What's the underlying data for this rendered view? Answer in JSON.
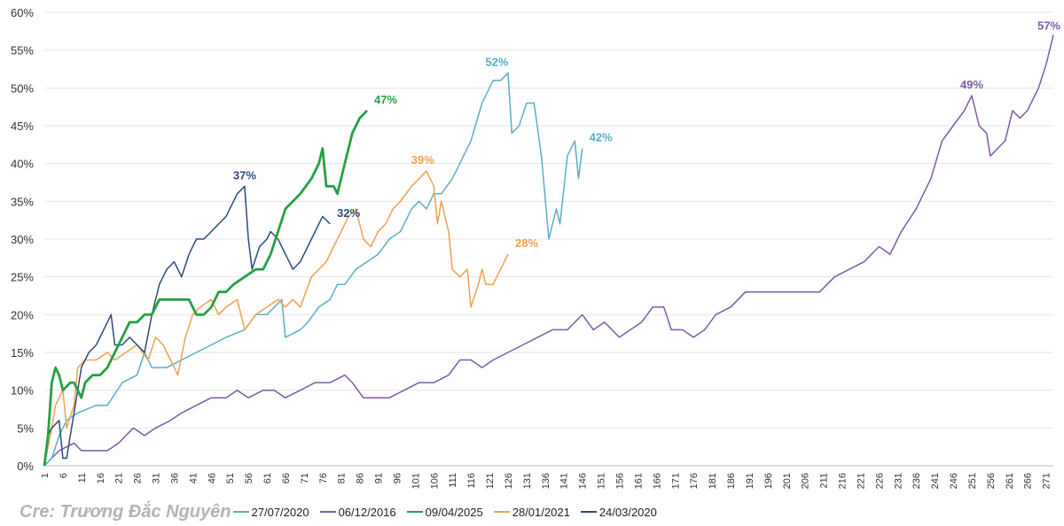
{
  "chart_data": {
    "type": "line",
    "title": "",
    "xlabel": "",
    "ylabel": "",
    "xlim": [
      1,
      273
    ],
    "ylim": [
      0,
      60
    ],
    "y_ticks": [
      "0%",
      "5%",
      "10%",
      "15%",
      "20%",
      "25%",
      "30%",
      "35%",
      "40%",
      "45%",
      "50%",
      "55%",
      "60%"
    ],
    "x_ticks": [
      1,
      6,
      11,
      16,
      21,
      26,
      31,
      36,
      41,
      46,
      51,
      56,
      61,
      66,
      71,
      76,
      81,
      86,
      91,
      96,
      101,
      106,
      111,
      116,
      121,
      126,
      131,
      136,
      141,
      146,
      151,
      156,
      161,
      166,
      171,
      176,
      181,
      186,
      191,
      196,
      201,
      206,
      211,
      216,
      221,
      226,
      231,
      236,
      241,
      246,
      251,
      256,
      261,
      266,
      271
    ],
    "grid": "horizontal",
    "legend_position": "bottom",
    "series": [
      {
        "name": "27/07/2020",
        "color": "#5aaec6",
        "width": 1.5,
        "points": [
          [
            1,
            0
          ],
          [
            3,
            1
          ],
          [
            5,
            4
          ],
          [
            7,
            6
          ],
          [
            10,
            7
          ],
          [
            15,
            8
          ],
          [
            18,
            8
          ],
          [
            22,
            11
          ],
          [
            26,
            12
          ],
          [
            28,
            15
          ],
          [
            30,
            13
          ],
          [
            34,
            13
          ],
          [
            38,
            14
          ],
          [
            42,
            15
          ],
          [
            46,
            16
          ],
          [
            50,
            17
          ],
          [
            55,
            18
          ],
          [
            58,
            20
          ],
          [
            61,
            20
          ],
          [
            65,
            22
          ],
          [
            66,
            17
          ],
          [
            70,
            18
          ],
          [
            72,
            19
          ],
          [
            75,
            21
          ],
          [
            78,
            22
          ],
          [
            80,
            24
          ],
          [
            82,
            24
          ],
          [
            85,
            26
          ],
          [
            88,
            27
          ],
          [
            91,
            28
          ],
          [
            94,
            30
          ],
          [
            97,
            31
          ],
          [
            100,
            34
          ],
          [
            102,
            35
          ],
          [
            104,
            34
          ],
          [
            106,
            36
          ],
          [
            108,
            36
          ],
          [
            111,
            38
          ],
          [
            113,
            40
          ],
          [
            116,
            43
          ],
          [
            119,
            48
          ],
          [
            122,
            51
          ],
          [
            124,
            51
          ],
          [
            126,
            52
          ],
          [
            127,
            44
          ],
          [
            129,
            45
          ],
          [
            131,
            48
          ],
          [
            133,
            48
          ],
          [
            135,
            41
          ],
          [
            137,
            30
          ],
          [
            139,
            34
          ],
          [
            140,
            32
          ],
          [
            142,
            41
          ],
          [
            144,
            43
          ],
          [
            145,
            38
          ],
          [
            146,
            42
          ]
        ],
        "end_label": "42%",
        "peak_label": {
          "x": 123,
          "y": 52,
          "text": "52%"
        }
      },
      {
        "name": "06/12/2016",
        "color": "#7d5aa6",
        "width": 1.5,
        "points": [
          [
            1,
            0
          ],
          [
            5,
            2
          ],
          [
            9,
            3
          ],
          [
            11,
            2
          ],
          [
            15,
            2
          ],
          [
            18,
            2
          ],
          [
            21,
            3
          ],
          [
            25,
            5
          ],
          [
            28,
            4
          ],
          [
            31,
            5
          ],
          [
            35,
            6
          ],
          [
            38,
            7
          ],
          [
            42,
            8
          ],
          [
            46,
            9
          ],
          [
            50,
            9
          ],
          [
            53,
            10
          ],
          [
            56,
            9
          ],
          [
            60,
            10
          ],
          [
            63,
            10
          ],
          [
            66,
            9
          ],
          [
            70,
            10
          ],
          [
            74,
            11
          ],
          [
            78,
            11
          ],
          [
            82,
            12
          ],
          [
            84,
            11
          ],
          [
            87,
            9
          ],
          [
            90,
            9
          ],
          [
            94,
            9
          ],
          [
            98,
            10
          ],
          [
            102,
            11
          ],
          [
            106,
            11
          ],
          [
            110,
            12
          ],
          [
            113,
            14
          ],
          [
            116,
            14
          ],
          [
            119,
            13
          ],
          [
            122,
            14
          ],
          [
            126,
            15
          ],
          [
            130,
            16
          ],
          [
            134,
            17
          ],
          [
            138,
            18
          ],
          [
            142,
            18
          ],
          [
            146,
            20
          ],
          [
            149,
            18
          ],
          [
            152,
            19
          ],
          [
            156,
            17
          ],
          [
            159,
            18
          ],
          [
            162,
            19
          ],
          [
            165,
            21
          ],
          [
            168,
            21
          ],
          [
            170,
            18
          ],
          [
            173,
            18
          ],
          [
            176,
            17
          ],
          [
            179,
            18
          ],
          [
            182,
            20
          ],
          [
            186,
            21
          ],
          [
            190,
            23
          ],
          [
            194,
            23
          ],
          [
            198,
            23
          ],
          [
            202,
            23
          ],
          [
            206,
            23
          ],
          [
            210,
            23
          ],
          [
            214,
            25
          ],
          [
            218,
            26
          ],
          [
            222,
            27
          ],
          [
            226,
            29
          ],
          [
            229,
            28
          ],
          [
            232,
            31
          ],
          [
            236,
            34
          ],
          [
            240,
            38
          ],
          [
            243,
            43
          ],
          [
            246,
            45
          ],
          [
            249,
            47
          ],
          [
            251,
            49
          ],
          [
            253,
            45
          ],
          [
            255,
            44
          ],
          [
            256,
            41
          ],
          [
            258,
            42
          ],
          [
            260,
            43
          ],
          [
            262,
            47
          ],
          [
            264,
            46
          ],
          [
            266,
            47
          ],
          [
            269,
            50
          ],
          [
            271,
            53
          ],
          [
            273,
            57
          ]
        ],
        "end_label": "57%",
        "peak_label": {
          "x": 251,
          "y": 49,
          "text": "49%"
        }
      },
      {
        "name": "09/04/2025",
        "color": "#24a142",
        "width": 2.8,
        "points": [
          [
            1,
            0
          ],
          [
            2,
            4
          ],
          [
            3,
            11
          ],
          [
            4,
            13
          ],
          [
            5,
            12
          ],
          [
            6,
            10
          ],
          [
            8,
            11
          ],
          [
            9,
            11
          ],
          [
            10,
            10
          ],
          [
            11,
            9
          ],
          [
            12,
            11
          ],
          [
            14,
            12
          ],
          [
            16,
            12
          ],
          [
            18,
            13
          ],
          [
            20,
            15
          ],
          [
            22,
            17
          ],
          [
            24,
            19
          ],
          [
            26,
            19
          ],
          [
            28,
            20
          ],
          [
            30,
            20
          ],
          [
            32,
            22
          ],
          [
            35,
            22
          ],
          [
            37,
            22
          ],
          [
            40,
            22
          ],
          [
            42,
            20
          ],
          [
            44,
            20
          ],
          [
            46,
            21
          ],
          [
            48,
            23
          ],
          [
            50,
            23
          ],
          [
            52,
            24
          ],
          [
            55,
            25
          ],
          [
            58,
            26
          ],
          [
            60,
            26
          ],
          [
            62,
            28
          ],
          [
            64,
            31
          ],
          [
            66,
            34
          ],
          [
            68,
            35
          ],
          [
            70,
            36
          ],
          [
            73,
            38
          ],
          [
            75,
            40
          ],
          [
            76,
            42
          ],
          [
            77,
            37
          ],
          [
            79,
            37
          ],
          [
            80,
            36
          ],
          [
            82,
            40
          ],
          [
            84,
            44
          ],
          [
            86,
            46
          ],
          [
            88,
            47
          ]
        ],
        "end_label": "47%",
        "peak_label": null
      },
      {
        "name": "28/01/2021",
        "color": "#f0a050",
        "width": 1.5,
        "points": [
          [
            1,
            0
          ],
          [
            3,
            5
          ],
          [
            4,
            8
          ],
          [
            5,
            9
          ],
          [
            6,
            10
          ],
          [
            7,
            5
          ],
          [
            9,
            8
          ],
          [
            10,
            13
          ],
          [
            12,
            14
          ],
          [
            15,
            14
          ],
          [
            18,
            15
          ],
          [
            20,
            14
          ],
          [
            23,
            15
          ],
          [
            26,
            16
          ],
          [
            29,
            14
          ],
          [
            31,
            17
          ],
          [
            33,
            16
          ],
          [
            35,
            14
          ],
          [
            37,
            12
          ],
          [
            39,
            17
          ],
          [
            41,
            20
          ],
          [
            43,
            21
          ],
          [
            46,
            22
          ],
          [
            48,
            20
          ],
          [
            50,
            21
          ],
          [
            53,
            22
          ],
          [
            55,
            18
          ],
          [
            58,
            20
          ],
          [
            61,
            21
          ],
          [
            64,
            22
          ],
          [
            66,
            21
          ],
          [
            68,
            22
          ],
          [
            70,
            21
          ],
          [
            73,
            25
          ],
          [
            75,
            26
          ],
          [
            77,
            27
          ],
          [
            79,
            29
          ],
          [
            81,
            31
          ],
          [
            83,
            33
          ],
          [
            85,
            34
          ],
          [
            87,
            30
          ],
          [
            89,
            29
          ],
          [
            91,
            31
          ],
          [
            93,
            32
          ],
          [
            95,
            34
          ],
          [
            97,
            35
          ],
          [
            100,
            37
          ],
          [
            102,
            38
          ],
          [
            104,
            39
          ],
          [
            106,
            37
          ],
          [
            107,
            32
          ],
          [
            108,
            35
          ],
          [
            110,
            31
          ],
          [
            111,
            26
          ],
          [
            113,
            25
          ],
          [
            115,
            26
          ],
          [
            116,
            21
          ],
          [
            118,
            24
          ],
          [
            119,
            26
          ],
          [
            120,
            24
          ],
          [
            122,
            24
          ],
          [
            124,
            26
          ],
          [
            126,
            28
          ]
        ],
        "end_label": "28%",
        "peak_label": {
          "x": 103,
          "y": 39,
          "text": "39%"
        }
      },
      {
        "name": "24/03/2020",
        "color": "#2b4b78",
        "width": 1.5,
        "points": [
          [
            1,
            0
          ],
          [
            2,
            4
          ],
          [
            3,
            5
          ],
          [
            5,
            6
          ],
          [
            6,
            1
          ],
          [
            7,
            1
          ],
          [
            8,
            4
          ],
          [
            9,
            7
          ],
          [
            11,
            13
          ],
          [
            13,
            15
          ],
          [
            15,
            16
          ],
          [
            17,
            18
          ],
          [
            19,
            20
          ],
          [
            20,
            16
          ],
          [
            22,
            16
          ],
          [
            24,
            17
          ],
          [
            26,
            16
          ],
          [
            28,
            15
          ],
          [
            30,
            20
          ],
          [
            32,
            24
          ],
          [
            34,
            26
          ],
          [
            36,
            27
          ],
          [
            38,
            25
          ],
          [
            40,
            28
          ],
          [
            42,
            30
          ],
          [
            44,
            30
          ],
          [
            46,
            31
          ],
          [
            48,
            32
          ],
          [
            50,
            33
          ],
          [
            52,
            35
          ],
          [
            53,
            36
          ],
          [
            55,
            37
          ],
          [
            56,
            30
          ],
          [
            57,
            26
          ],
          [
            59,
            29
          ],
          [
            61,
            30
          ],
          [
            62,
            31
          ],
          [
            64,
            30
          ],
          [
            66,
            28
          ],
          [
            68,
            26
          ],
          [
            70,
            27
          ],
          [
            72,
            29
          ],
          [
            74,
            31
          ],
          [
            76,
            33
          ],
          [
            78,
            32
          ]
        ],
        "end_label": "32%",
        "peak_label": {
          "x": 55,
          "y": 37,
          "text": "37%"
        }
      }
    ],
    "credit": "Cre: Trương Đắc Nguyên"
  }
}
